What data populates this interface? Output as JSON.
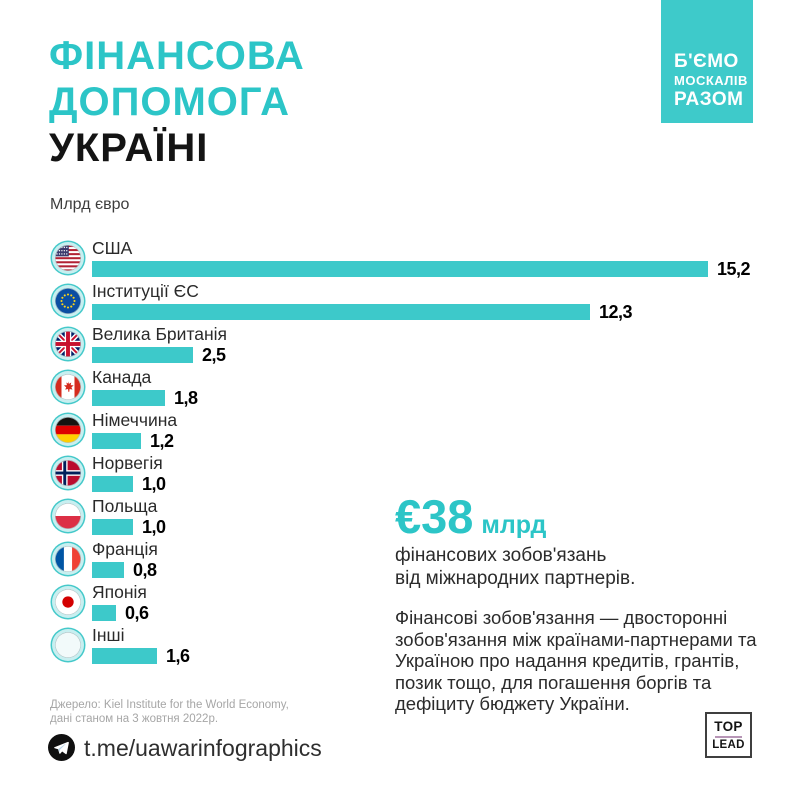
{
  "accent_teal": "#2cc5c7",
  "bar_teal": "#3dc9ca",
  "header": {
    "title_line1": "ФІНАНСОВА",
    "title_line2": "ДОПОМОГА",
    "title_line3": "УКРАЇНІ",
    "units_label": "Млрд євро"
  },
  "badge": {
    "line1": "Б'ЄМО",
    "line2": "МОСКАЛІВ",
    "line3": "РАЗОМ"
  },
  "chart_data": {
    "type": "bar",
    "orientation": "horizontal",
    "unit": "Млрд євро",
    "title": "Фінансова допомога Україні",
    "categories": [
      "США",
      "Інституції ЄС",
      "Велика Британія",
      "Канада",
      "Німеччина",
      "Норвегія",
      "Польща",
      "Франція",
      "Японія",
      "Інші"
    ],
    "values": [
      15.2,
      12.3,
      2.5,
      1.8,
      1.2,
      1.0,
      1.0,
      0.8,
      0.6,
      1.6
    ],
    "value_labels": [
      "15,2",
      "12,3",
      "2,5",
      "1,8",
      "1,2",
      "1,0",
      "1,0",
      "0,8",
      "0,6",
      "1,6"
    ],
    "flags": [
      "us",
      "eu",
      "gb",
      "ca",
      "de",
      "no",
      "pl",
      "fr",
      "jp",
      "other"
    ],
    "bar_color": "#3dc9ca",
    "xlim": [
      0,
      15.2
    ],
    "grid": false,
    "legend": false
  },
  "callout": {
    "amount": "€38",
    "amount_unit": "млрд",
    "line1": "фінансових зобов'язань",
    "line2": "від міжнародних партнерів.",
    "paragraph": "Фінансові зобов'язання — двосторонні зобов'язання між країнами-партнерами та Україною про надання кредитів, грантів, позик тощо, для погашення боргів та дефіциту бюджету України."
  },
  "source": {
    "line1": "Джерело: Kiel Institute for the World Economy,",
    "line2": "дані станом на 3 жовтня 2022р."
  },
  "footer": {
    "telegram_url": "t.me/uawarinfographics",
    "logo_top": "TOP",
    "logo_bottom": "LEAD"
  }
}
